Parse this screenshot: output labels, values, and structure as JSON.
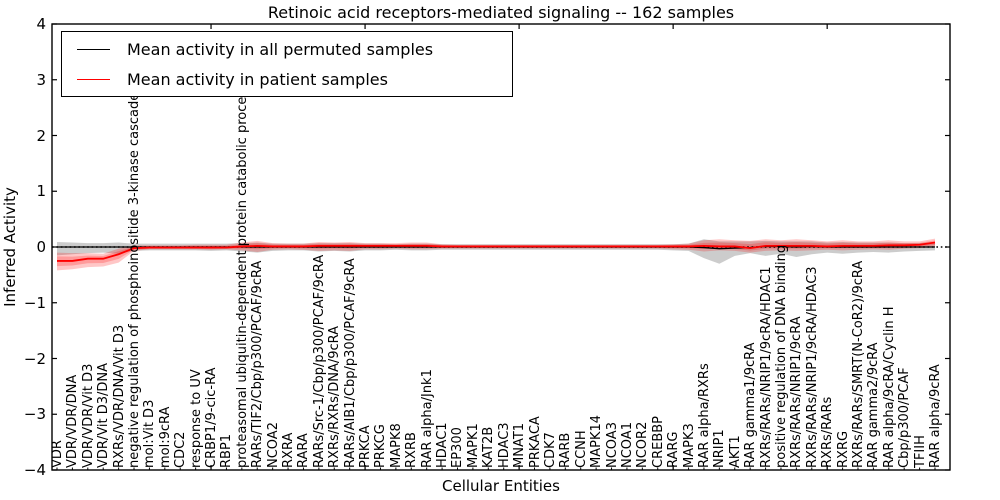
{
  "figure": {
    "title": "Retinoic acid receptors-mediated signaling -- 162 samples",
    "xlabel": "Cellular Entities",
    "ylabel": "Inferred Activity"
  },
  "legend": {
    "entries": [
      {
        "label": "Mean activity in all permuted samples",
        "color": "#000000"
      },
      {
        "label": "Mean activity in patient samples",
        "color": "#ff0000"
      }
    ]
  },
  "chart_data": {
    "type": "line",
    "title": "Retinoic acid receptors-mediated signaling -- 162 samples",
    "xlabel": "Cellular Entities",
    "ylabel": "Inferred Activity",
    "ylim": [
      -4,
      4
    ],
    "yticks": [
      4,
      3,
      2,
      1,
      0,
      -1,
      -2,
      -3,
      -4
    ],
    "grid": false,
    "legend_position": "upper left",
    "zero_line": {
      "style": "dotted",
      "color": "#000000",
      "y": 0
    },
    "categories": [
      "VDR",
      "VDR/VDR/DNA",
      "VDR/VDR/Vit D3",
      "VDR/Vit D3/DNA",
      "RXRs/VDR/DNA/Vit D3",
      "negative regulation of phosphoinositide 3-kinase cascade",
      "mol:Vit D3",
      "mol:9cRA",
      "CDC2",
      "response to UV",
      "CRBP1/9-cic-RA",
      "RBP1",
      "proteasomal ubiquitin-dependent protein catabolic process",
      "RARs/TIF2/Cbp/p300/PCAF/9cRA",
      "NCOA2",
      "RXRA",
      "RARA",
      "RARs/Src-1/Cbp/p300/PCAF/9cRA",
      "RXRs/RXRs/DNA/9cRA",
      "RARs/AIB1/Cbp/p300/PCAF/9cRA",
      "PRKCA",
      "PRKCG",
      "MAPK8",
      "RXRB",
      "RAR alpha/Jnk1",
      "HDAC1",
      "EP300",
      "MAPK1",
      "KAT2B",
      "HDAC3",
      "MNAT1",
      "PRKACA",
      "CDK7",
      "RARB",
      "CCNH",
      "MAPK14",
      "NCOA3",
      "NCOA1",
      "NCOR2",
      "CREBBP",
      "RARG",
      "MAPK3",
      "RAR alpha/RXRs",
      "NRIP1",
      "AKT1",
      "RAR gamma1/9cRA",
      "RXRs/RARs/NRIP1/9cRA/HDAC1",
      "positive regulation of DNA binding",
      "RXRs/RARs/NRIP1/9cRA",
      "RXRs/RARs/NRIP1/9cRA/HDAC3",
      "RXRs/RARs",
      "RXRG",
      "RXRs/RARs/SMRT(N-CoR2)/9cRA",
      "RAR gamma2/9cRA",
      "RAR alpha/9cRA/Cyclin H",
      "Cbp/p300/PCAF",
      "TFIIH",
      "RAR alpha/9cRA"
    ],
    "series": [
      {
        "name": "Mean activity in all permuted samples",
        "color": "#000000",
        "values": [
          0,
          0,
          0,
          0,
          0,
          0,
          0,
          0,
          0,
          0,
          0,
          0,
          0,
          0,
          0,
          0,
          0,
          0,
          0,
          0,
          0,
          0,
          0,
          0,
          0,
          0,
          0,
          0,
          0,
          0,
          0,
          0,
          0,
          0,
          0,
          0,
          0,
          0,
          0,
          0,
          0,
          0,
          -0.01,
          -0.03,
          -0.02,
          -0.01,
          0.01,
          0.01,
          0,
          0.01,
          0,
          0,
          0,
          0,
          0,
          0,
          0,
          0
        ]
      },
      {
        "name": "Mean activity in patient samples",
        "color": "#ff0000",
        "values": [
          -0.25,
          -0.25,
          -0.21,
          -0.21,
          -0.13,
          -0.02,
          -0.01,
          -0.01,
          -0.01,
          -0.01,
          -0.01,
          -0.01,
          0.01,
          0.02,
          0.01,
          0.01,
          0.01,
          0.02,
          0.02,
          0.02,
          0.02,
          0.02,
          0.02,
          0.02,
          0.02,
          0.01,
          0.01,
          0.01,
          0.01,
          0.01,
          0.01,
          0.01,
          0.01,
          0.01,
          0.01,
          0.01,
          0.01,
          0.01,
          0.01,
          0.01,
          0.01,
          0.01,
          0.02,
          0.01,
          0.01,
          -0.02,
          0.02,
          0.02,
          0.02,
          0.02,
          0.01,
          0.02,
          0.02,
          0.02,
          0.03,
          0.03,
          0.04,
          0.08
        ]
      }
    ],
    "bands": [
      {
        "name": "permuted-samples-range",
        "color": "#808080",
        "opacity": 0.4,
        "lower": [
          -0.15,
          -0.13,
          -0.11,
          -0.1,
          -0.12,
          -0.07,
          -0.06,
          -0.06,
          -0.06,
          -0.06,
          -0.07,
          -0.06,
          -0.08,
          -0.1,
          -0.07,
          -0.06,
          -0.06,
          -0.08,
          -0.07,
          -0.08,
          -0.06,
          -0.06,
          -0.05,
          -0.06,
          -0.06,
          -0.05,
          -0.05,
          -0.05,
          -0.05,
          -0.05,
          -0.05,
          -0.05,
          -0.05,
          -0.05,
          -0.05,
          -0.05,
          -0.05,
          -0.05,
          -0.05,
          -0.05,
          -0.06,
          -0.07,
          -0.2,
          -0.3,
          -0.16,
          -0.11,
          -0.16,
          -0.12,
          -0.18,
          -0.13,
          -0.1,
          -0.12,
          -0.1,
          -0.09,
          -0.1,
          -0.08,
          -0.07,
          -0.06
        ],
        "upper": [
          0.09,
          0.08,
          0.07,
          0.07,
          0.08,
          0.06,
          0.06,
          0.06,
          0.06,
          0.06,
          0.06,
          0.06,
          0.07,
          0.08,
          0.06,
          0.06,
          0.06,
          0.07,
          0.07,
          0.07,
          0.06,
          0.06,
          0.05,
          0.06,
          0.06,
          0.05,
          0.05,
          0.05,
          0.05,
          0.05,
          0.05,
          0.05,
          0.05,
          0.05,
          0.05,
          0.05,
          0.05,
          0.05,
          0.05,
          0.05,
          0.05,
          0.06,
          0.14,
          0.1,
          0.1,
          0.1,
          0.11,
          0.1,
          0.1,
          0.1,
          0.08,
          0.09,
          0.08,
          0.08,
          0.08,
          0.07,
          0.07,
          0.09
        ]
      },
      {
        "name": "patient-samples-range",
        "color": "#ff0000",
        "opacity": 0.22,
        "lower": [
          -0.42,
          -0.4,
          -0.36,
          -0.35,
          -0.28,
          -0.07,
          -0.04,
          -0.04,
          -0.04,
          -0.04,
          -0.05,
          -0.04,
          -0.06,
          -0.09,
          -0.05,
          -0.04,
          -0.05,
          -0.07,
          -0.06,
          -0.07,
          -0.04,
          -0.04,
          -0.03,
          -0.04,
          -0.04,
          -0.03,
          -0.03,
          -0.03,
          -0.03,
          -0.03,
          -0.03,
          -0.03,
          -0.03,
          -0.03,
          -0.03,
          -0.03,
          -0.03,
          -0.03,
          -0.03,
          -0.03,
          -0.04,
          -0.05,
          -0.08,
          -0.06,
          -0.07,
          -0.1,
          -0.07,
          -0.06,
          -0.07,
          -0.06,
          -0.05,
          -0.06,
          -0.05,
          -0.04,
          -0.05,
          -0.03,
          -0.02,
          0.0
        ],
        "upper": [
          -0.1,
          -0.11,
          -0.11,
          -0.12,
          -0.03,
          0.03,
          0.03,
          0.03,
          0.03,
          0.04,
          0.04,
          0.04,
          0.08,
          0.11,
          0.07,
          0.06,
          0.06,
          0.09,
          0.08,
          0.09,
          0.07,
          0.07,
          0.07,
          0.08,
          0.08,
          0.05,
          0.04,
          0.04,
          0.04,
          0.04,
          0.04,
          0.04,
          0.04,
          0.04,
          0.04,
          0.04,
          0.04,
          0.04,
          0.04,
          0.04,
          0.05,
          0.06,
          0.12,
          0.14,
          0.12,
          0.11,
          0.14,
          0.12,
          0.14,
          0.12,
          0.1,
          0.12,
          0.1,
          0.1,
          0.12,
          0.1,
          0.1,
          0.15
        ]
      }
    ]
  }
}
